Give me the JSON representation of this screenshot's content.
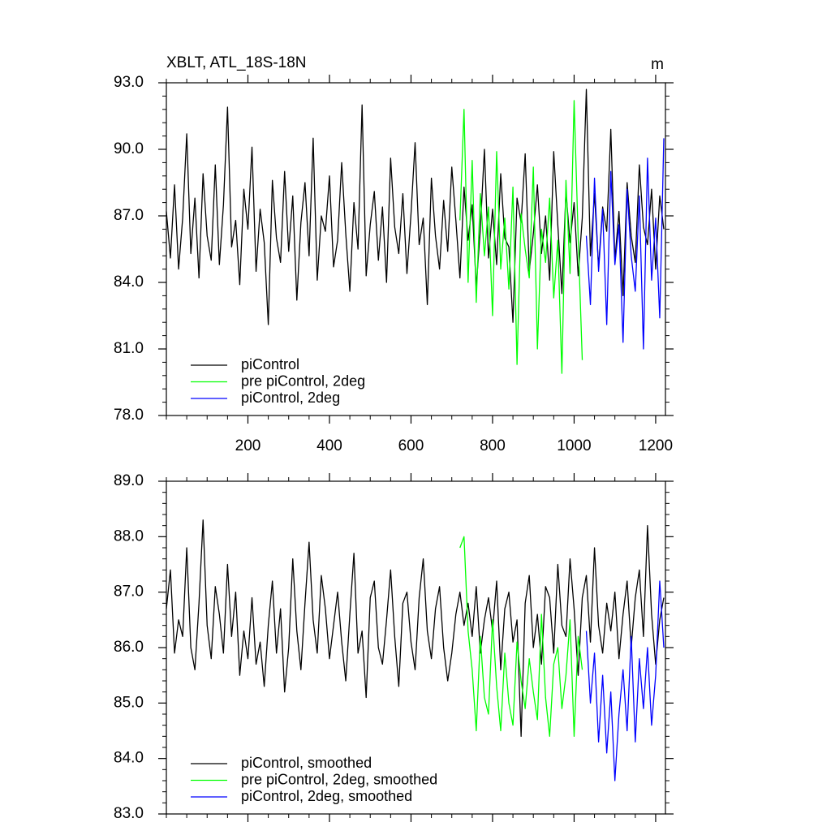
{
  "chart_data": [
    {
      "type": "line",
      "title": "XBLT, ATL_18S-18N",
      "units": "m",
      "xlim": [
        0,
        1224
      ],
      "xticks": [
        200,
        400,
        600,
        800,
        1000,
        1200
      ],
      "show_xtick_labels": true,
      "ylim": [
        78,
        93
      ],
      "yticks": [
        {
          "value": 78,
          "label": "78.0"
        },
        {
          "value": 81,
          "label": "81.0"
        },
        {
          "value": 84,
          "label": "84.0"
        },
        {
          "value": 87,
          "label": "87.0"
        },
        {
          "value": 90,
          "label": "90.0"
        },
        {
          "value": 93,
          "label": "93.0"
        }
      ],
      "legend": "lower left",
      "series": [
        {
          "name": "piControl",
          "color": "#000000",
          "x": [
            0,
            10,
            20,
            30,
            40,
            50,
            60,
            70,
            80,
            90,
            100,
            110,
            120,
            130,
            140,
            150,
            160,
            170,
            180,
            190,
            200,
            210,
            220,
            230,
            240,
            250,
            260,
            270,
            280,
            290,
            300,
            310,
            320,
            330,
            340,
            350,
            360,
            370,
            380,
            390,
            400,
            410,
            420,
            430,
            440,
            450,
            460,
            470,
            480,
            490,
            500,
            510,
            520,
            530,
            540,
            550,
            560,
            570,
            580,
            590,
            600,
            610,
            620,
            630,
            640,
            650,
            660,
            670,
            680,
            690,
            700,
            710,
            720,
            730,
            740,
            750,
            760,
            770,
            780,
            790,
            800,
            810,
            820,
            830,
            840,
            850,
            860,
            870,
            880,
            890,
            900,
            910,
            920,
            930,
            940,
            950,
            960,
            970,
            980,
            990,
            1000,
            1010,
            1020,
            1030,
            1040,
            1050,
            1060,
            1070,
            1080,
            1090,
            1100,
            1110,
            1120,
            1130,
            1140,
            1150,
            1160,
            1170,
            1180,
            1190,
            1200,
            1210,
            1220
          ],
          "values": [
            87.2,
            85.1,
            88.4,
            84.6,
            86.9,
            90.7,
            85.3,
            87.8,
            84.2,
            88.9,
            86.1,
            85.0,
            89.3,
            84.8,
            87.5,
            91.9,
            85.6,
            86.8,
            83.9,
            88.2,
            86.4,
            90.1,
            84.5,
            87.3,
            85.8,
            82.1,
            88.6,
            86.0,
            84.9,
            89.0,
            85.4,
            87.9,
            83.2,
            86.7,
            88.5,
            85.2,
            90.5,
            84.1,
            87.0,
            86.3,
            88.8,
            84.7,
            85.9,
            89.4,
            86.2,
            83.6,
            87.6,
            85.5,
            92.0,
            84.3,
            86.6,
            88.1,
            85.0,
            87.4,
            84.0,
            89.6,
            86.5,
            85.3,
            88.0,
            84.4,
            87.1,
            90.3,
            85.7,
            86.9,
            83.0,
            88.7,
            86.1,
            84.6,
            87.7,
            85.4,
            89.2,
            86.8,
            84.2,
            88.3,
            85.9,
            87.5,
            83.8,
            86.4,
            90.0,
            85.1,
            87.3,
            84.8,
            88.9,
            86.0,
            85.6,
            82.2,
            87.8,
            86.7,
            89.8,
            84.5,
            86.2,
            88.4,
            85.3,
            87.0,
            84.1,
            89.9,
            86.6,
            83.5,
            88.1,
            85.8,
            87.6,
            84.3,
            86.9,
            92.7,
            85.2,
            88.0,
            84.7,
            87.4,
            86.3,
            90.9,
            85.0,
            87.2,
            83.4,
            88.5,
            86.1,
            84.9,
            89.3,
            86.5,
            85.7,
            88.2,
            84.6,
            87.9,
            86.4
          ]
        },
        {
          "name": "pre piControl, 2deg",
          "color": "#00ff00",
          "x": [
            720,
            730,
            740,
            750,
            760,
            770,
            780,
            790,
            800,
            810,
            820,
            830,
            840,
            850,
            860,
            870,
            880,
            890,
            900,
            910,
            920,
            930,
            940,
            950,
            960,
            970,
            980,
            990,
            1000,
            1010,
            1020
          ],
          "values": [
            86.8,
            91.8,
            84.0,
            89.5,
            83.1,
            88.0,
            85.2,
            87.4,
            82.5,
            89.9,
            84.6,
            86.9,
            83.7,
            88.3,
            80.3,
            87.1,
            85.5,
            84.2,
            89.2,
            81.0,
            86.4,
            84.9,
            87.8,
            83.3,
            85.9,
            79.9,
            88.6,
            84.4,
            92.2,
            86.0,
            80.5
          ]
        },
        {
          "name": "piControl, 2deg",
          "color": "#0000ff",
          "x": [
            1030,
            1040,
            1050,
            1060,
            1070,
            1080,
            1090,
            1100,
            1110,
            1120,
            1130,
            1140,
            1150,
            1160,
            1170,
            1180,
            1190,
            1200,
            1210,
            1220
          ],
          "values": [
            86.1,
            83.0,
            88.7,
            84.5,
            87.3,
            82.1,
            89.0,
            84.8,
            86.6,
            81.3,
            88.2,
            85.2,
            83.6,
            87.9,
            81.0,
            89.6,
            84.1,
            86.9,
            82.4,
            90.5
          ]
        }
      ]
    },
    {
      "type": "line",
      "xlim": [
        0,
        1224
      ],
      "xticks": [
        200,
        400,
        600,
        800,
        1000,
        1200
      ],
      "show_xtick_labels": false,
      "ylim": [
        83,
        89
      ],
      "yticks": [
        {
          "value": 83,
          "label": "83.0"
        },
        {
          "value": 84,
          "label": "84.0"
        },
        {
          "value": 85,
          "label": "85.0"
        },
        {
          "value": 86,
          "label": "86.0"
        },
        {
          "value": 87,
          "label": "87.0"
        },
        {
          "value": 88,
          "label": "88.0"
        },
        {
          "value": 89,
          "label": "89.0"
        }
      ],
      "legend": "lower left",
      "series": [
        {
          "name": "piControl, smoothed",
          "color": "#000000",
          "x": [
            0,
            10,
            20,
            30,
            40,
            50,
            60,
            70,
            80,
            90,
            100,
            110,
            120,
            130,
            140,
            150,
            160,
            170,
            180,
            190,
            200,
            210,
            220,
            230,
            240,
            250,
            260,
            270,
            280,
            290,
            300,
            310,
            320,
            330,
            340,
            350,
            360,
            370,
            380,
            390,
            400,
            410,
            420,
            430,
            440,
            450,
            460,
            470,
            480,
            490,
            500,
            510,
            520,
            530,
            540,
            550,
            560,
            570,
            580,
            590,
            600,
            610,
            620,
            630,
            640,
            650,
            660,
            670,
            680,
            690,
            700,
            710,
            720,
            730,
            740,
            750,
            760,
            770,
            780,
            790,
            800,
            810,
            820,
            830,
            840,
            850,
            860,
            870,
            880,
            890,
            900,
            910,
            920,
            930,
            940,
            950,
            960,
            970,
            980,
            990,
            1000,
            1010,
            1020,
            1030,
            1040,
            1050,
            1060,
            1070,
            1080,
            1090,
            1100,
            1110,
            1120,
            1130,
            1140,
            1150,
            1160,
            1170,
            1180,
            1190,
            1200,
            1210,
            1220
          ],
          "values": [
            86.7,
            87.4,
            85.9,
            86.5,
            86.2,
            87.8,
            86.0,
            85.6,
            86.8,
            88.3,
            86.4,
            85.8,
            87.1,
            86.6,
            85.9,
            87.5,
            86.2,
            87.0,
            85.5,
            86.3,
            85.8,
            86.9,
            85.7,
            86.1,
            85.3,
            86.4,
            87.2,
            85.9,
            86.7,
            85.2,
            86.0,
            87.6,
            86.3,
            85.6,
            86.8,
            87.9,
            86.5,
            85.9,
            87.3,
            86.7,
            85.8,
            86.4,
            87.0,
            86.1,
            85.4,
            86.6,
            87.7,
            85.9,
            86.3,
            85.1,
            86.9,
            87.2,
            86.0,
            85.7,
            86.5,
            87.4,
            86.2,
            85.3,
            86.8,
            87.0,
            86.1,
            85.6,
            86.9,
            87.6,
            86.3,
            85.8,
            86.7,
            87.1,
            86.0,
            85.4,
            85.9,
            86.6,
            87.0,
            86.4,
            86.8,
            86.2,
            87.1,
            85.9,
            86.5,
            86.9,
            86.3,
            87.2,
            85.6,
            86.7,
            87.0,
            86.1,
            86.5,
            84.4,
            86.8,
            87.3,
            86.0,
            86.6,
            85.7,
            87.1,
            86.9,
            85.9,
            87.5,
            86.4,
            86.2,
            87.6,
            86.7,
            85.5,
            86.9,
            87.3,
            86.1,
            87.8,
            86.4,
            85.9,
            86.8,
            86.3,
            87.0,
            85.8,
            86.6,
            87.2,
            86.0,
            86.9,
            87.4,
            86.2,
            88.2,
            86.6,
            85.7,
            86.5,
            86.9
          ]
        },
        {
          "name": "pre piControl, 2deg, smoothed",
          "color": "#00ff00",
          "x": [
            720,
            730,
            740,
            750,
            760,
            770,
            780,
            790,
            800,
            810,
            820,
            830,
            840,
            850,
            860,
            870,
            880,
            890,
            900,
            910,
            920,
            930,
            940,
            950,
            960,
            970,
            980,
            990,
            1000,
            1010,
            1020
          ],
          "values": [
            87.8,
            88.0,
            86.3,
            85.6,
            84.5,
            86.2,
            85.1,
            84.8,
            86.5,
            85.3,
            84.5,
            85.9,
            85.0,
            84.6,
            86.1,
            85.4,
            84.9,
            85.8,
            85.2,
            84.7,
            86.6,
            85.1,
            84.4,
            85.7,
            86.0,
            84.9,
            85.5,
            86.5,
            84.4,
            86.2,
            85.6
          ]
        },
        {
          "name": "piControl, 2deg, smoothed",
          "color": "#0000ff",
          "x": [
            1030,
            1040,
            1050,
            1060,
            1070,
            1080,
            1090,
            1100,
            1110,
            1120,
            1130,
            1140,
            1150,
            1160,
            1170,
            1180,
            1190,
            1200,
            1210,
            1220
          ],
          "values": [
            86.3,
            85.0,
            85.9,
            84.3,
            85.5,
            84.1,
            85.2,
            83.6,
            84.8,
            85.6,
            84.5,
            86.2,
            84.3,
            85.8,
            84.9,
            86.0,
            84.6,
            85.5,
            87.2,
            86.0
          ]
        }
      ]
    }
  ]
}
